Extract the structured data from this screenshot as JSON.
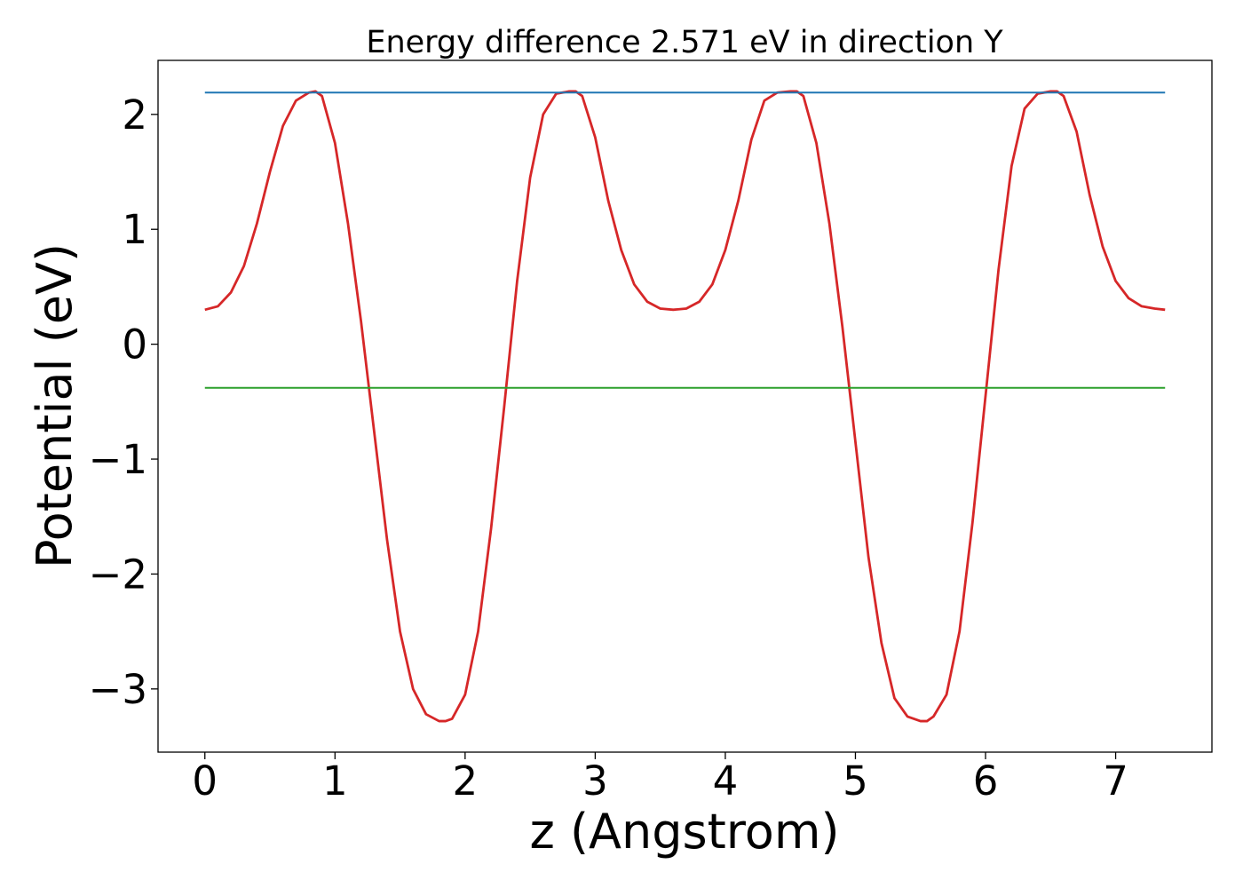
{
  "chart_data": {
    "type": "line",
    "title": "Energy difference 2.571 eV in direction Y",
    "xlabel": "z (Angstrom)",
    "ylabel": "Potential (eV)",
    "xlim": [
      -0.36,
      7.74
    ],
    "ylim": [
      -3.55,
      2.47
    ],
    "x_ticks": [
      0,
      1,
      2,
      3,
      4,
      5,
      6,
      7
    ],
    "y_ticks": [
      2,
      1,
      0,
      -1,
      -2,
      -3
    ],
    "x_tick_labels": [
      "0",
      "1",
      "2",
      "3",
      "4",
      "5",
      "6",
      "7"
    ],
    "y_tick_labels": [
      "2",
      "1",
      "0",
      "−1",
      "−2",
      "−3"
    ],
    "grid": false,
    "legend": "none",
    "series": [
      {
        "color": "#d62728",
        "x": [
          0.0,
          0.1,
          0.2,
          0.3,
          0.4,
          0.5,
          0.6,
          0.7,
          0.8,
          0.85,
          0.9,
          1.0,
          1.1,
          1.2,
          1.3,
          1.4,
          1.5,
          1.6,
          1.7,
          1.8,
          1.85,
          1.9,
          2.0,
          2.1,
          2.2,
          2.3,
          2.4,
          2.5,
          2.6,
          2.7,
          2.8,
          2.85,
          2.9,
          3.0,
          3.1,
          3.2,
          3.3,
          3.4,
          3.5,
          3.6,
          3.7,
          3.8,
          3.9,
          4.0,
          4.1,
          4.2,
          4.3,
          4.4,
          4.5,
          4.55,
          4.6,
          4.7,
          4.8,
          4.9,
          5.0,
          5.1,
          5.2,
          5.3,
          5.4,
          5.5,
          5.55,
          5.6,
          5.7,
          5.8,
          5.9,
          6.0,
          6.1,
          6.2,
          6.3,
          6.4,
          6.5,
          6.55,
          6.6,
          6.7,
          6.8,
          6.9,
          7.0,
          7.1,
          7.2,
          7.3,
          7.38
        ],
        "values": [
          0.3,
          0.33,
          0.45,
          0.68,
          1.05,
          1.5,
          1.9,
          2.12,
          2.19,
          2.2,
          2.16,
          1.75,
          1.05,
          0.2,
          -0.75,
          -1.7,
          -2.5,
          -3.0,
          -3.22,
          -3.28,
          -3.28,
          -3.26,
          -3.05,
          -2.5,
          -1.6,
          -0.55,
          0.55,
          1.45,
          2.0,
          2.18,
          2.2,
          2.2,
          2.16,
          1.8,
          1.25,
          0.82,
          0.52,
          0.37,
          0.31,
          0.3,
          0.31,
          0.37,
          0.52,
          0.82,
          1.25,
          1.78,
          2.12,
          2.19,
          2.2,
          2.2,
          2.16,
          1.75,
          1.05,
          0.15,
          -0.85,
          -1.85,
          -2.6,
          -3.08,
          -3.24,
          -3.28,
          -3.28,
          -3.24,
          -3.05,
          -2.5,
          -1.55,
          -0.45,
          0.65,
          1.55,
          2.05,
          2.18,
          2.2,
          2.2,
          2.16,
          1.85,
          1.3,
          0.85,
          0.55,
          0.4,
          0.33,
          0.31,
          0.3
        ]
      },
      {
        "color": "#1f77b4",
        "x": [
          0.0,
          7.38
        ],
        "values": [
          2.19,
          2.19
        ]
      },
      {
        "color": "#2ca02c",
        "x": [
          0.0,
          7.38
        ],
        "values": [
          -0.38,
          -0.38
        ]
      }
    ]
  }
}
